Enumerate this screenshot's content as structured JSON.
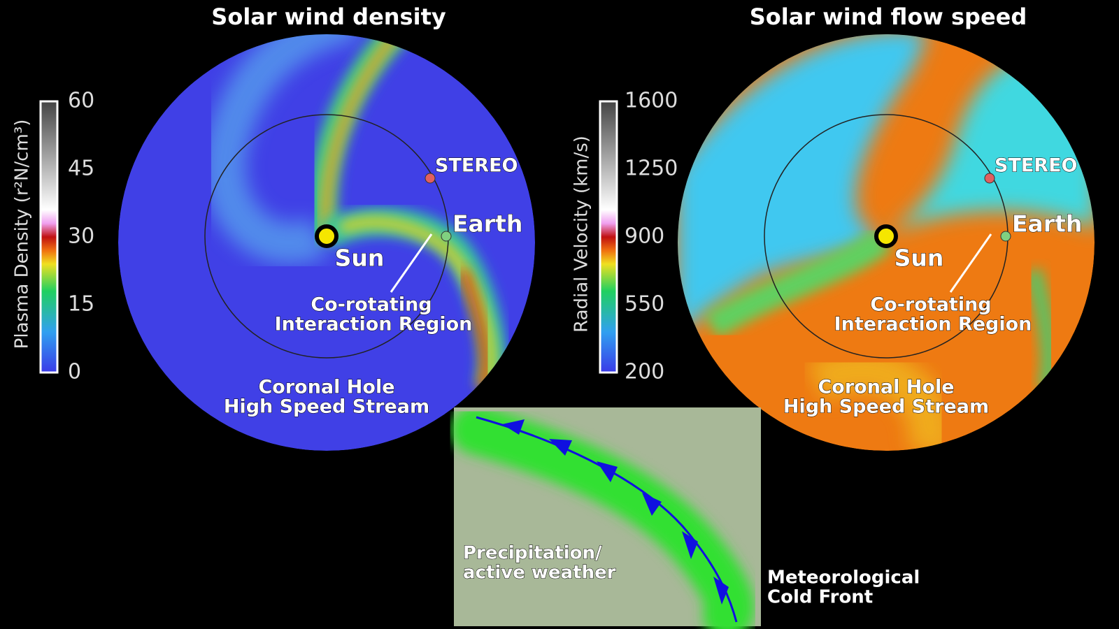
{
  "panels": [
    {
      "title": "Solar wind density",
      "colorbar": {
        "label": "Plasma Density (r²N/cm³)",
        "ticks": [
          60,
          45,
          30,
          15,
          0
        ]
      },
      "labels": {
        "sun": "Sun",
        "earth": "Earth",
        "stereo": "STEREO",
        "cir": [
          "Co-rotating",
          "Interaction Region"
        ],
        "coronal_hole": [
          "Coronal Hole",
          "High Speed Stream"
        ]
      }
    },
    {
      "title": "Solar wind flow speed",
      "colorbar": {
        "label": "Radial Velocity (km/s)",
        "ticks": [
          1600,
          1250,
          900,
          550,
          200
        ]
      },
      "labels": {
        "sun": "Sun",
        "earth": "Earth",
        "stereo": "STEREO",
        "cir": [
          "Co-rotating",
          "Interaction Region"
        ],
        "coronal_hole": [
          "Coronal Hole",
          "High Speed Stream"
        ]
      }
    }
  ],
  "inset": {
    "precipitation": [
      "Precipitation/",
      "active weather"
    ],
    "front": [
      "Meteorological",
      "Cold Front"
    ]
  }
}
